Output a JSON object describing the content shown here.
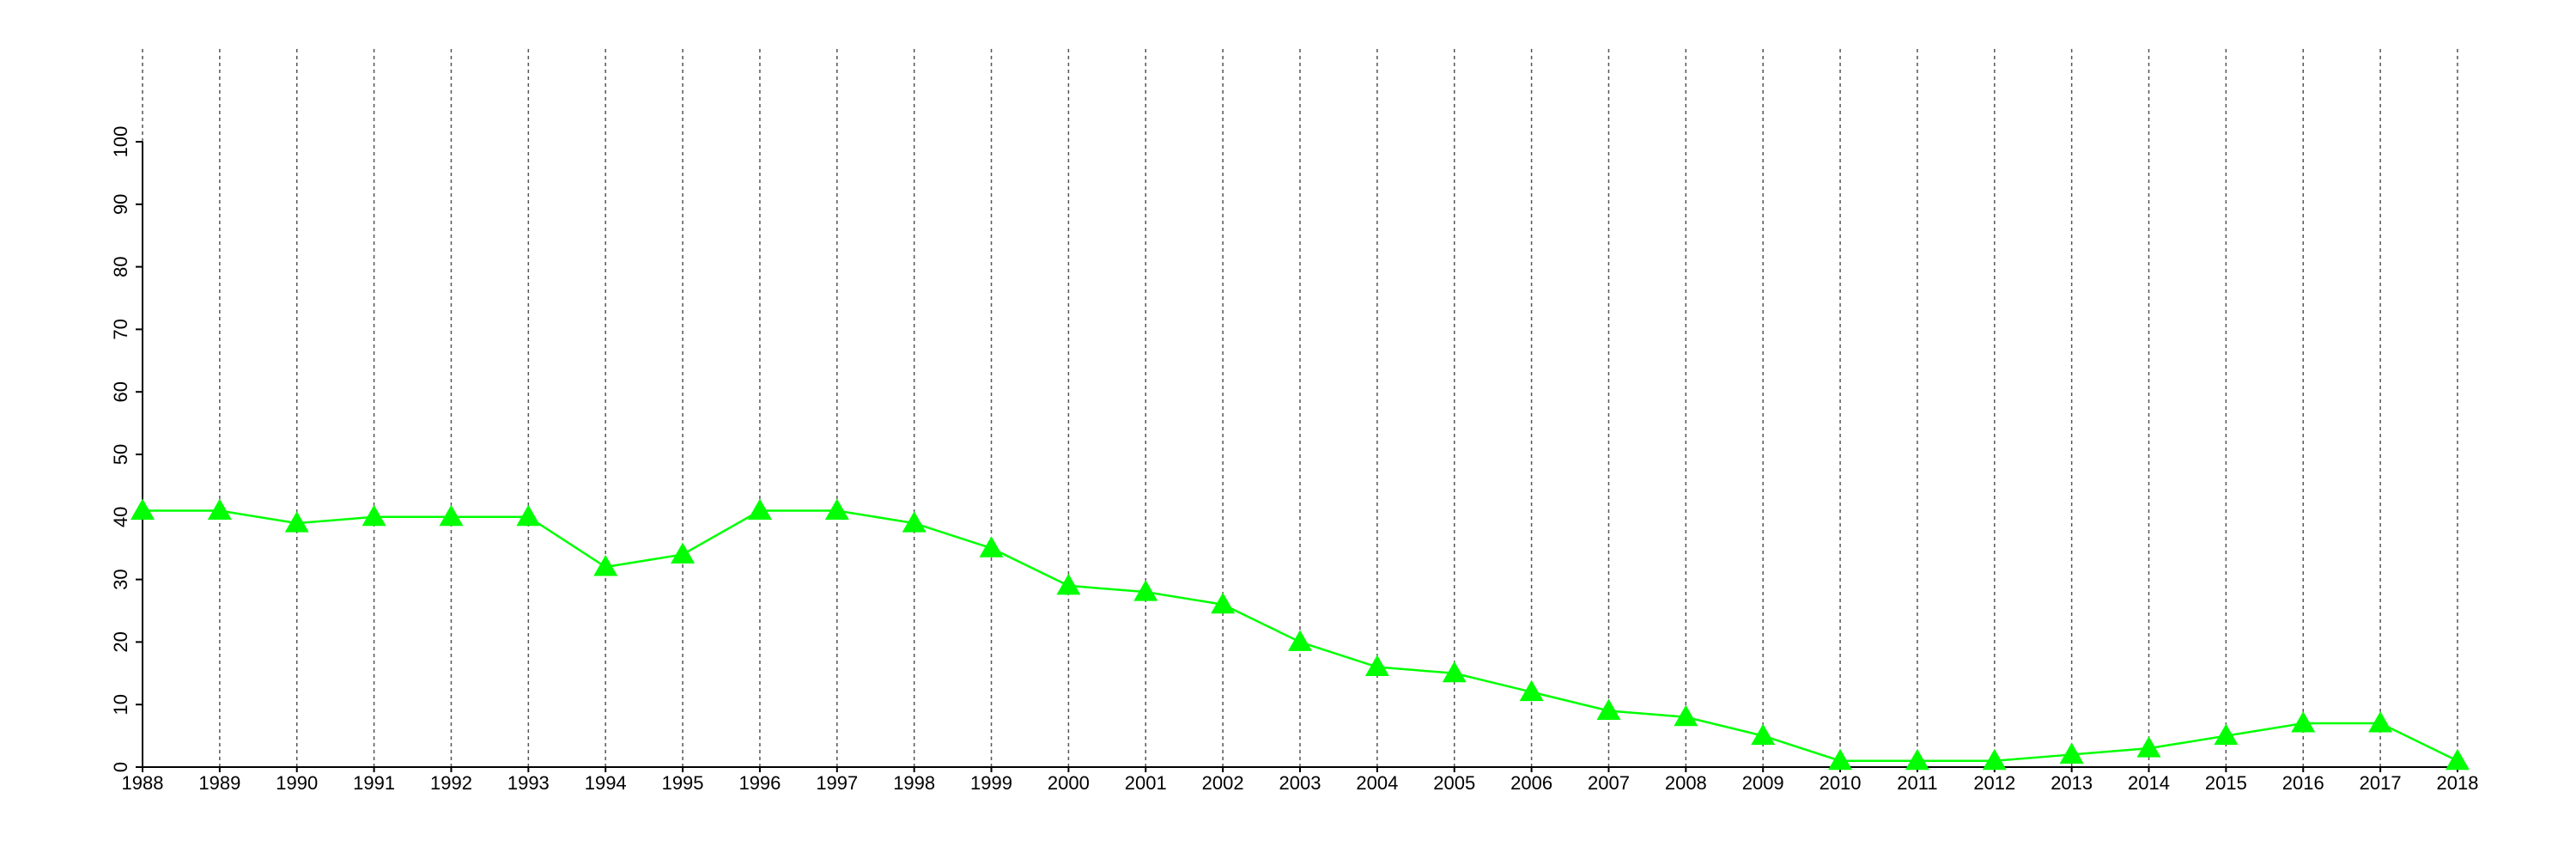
{
  "chart_data": {
    "type": "line",
    "x": [
      1988,
      1989,
      1990,
      1991,
      1992,
      1993,
      1994,
      1995,
      1996,
      1997,
      1998,
      1999,
      2000,
      2001,
      2002,
      2003,
      2004,
      2005,
      2006,
      2007,
      2008,
      2009,
      2010,
      2011,
      2012,
      2013,
      2014,
      2015,
      2016,
      2017,
      2018
    ],
    "values": [
      41,
      41,
      39,
      40,
      40,
      40,
      32,
      34,
      41,
      41,
      39,
      35,
      29,
      28,
      26,
      20,
      16,
      15,
      12,
      9,
      8,
      5,
      1,
      1,
      1,
      2,
      3,
      5,
      7,
      7,
      1
    ],
    "color": "#00ff00",
    "marker": "triangle",
    "xlim": [
      1988,
      2018
    ],
    "xticks": [
      1988,
      1989,
      1990,
      1991,
      1992,
      1993,
      1994,
      1995,
      1996,
      1997,
      1998,
      1999,
      2000,
      2001,
      2002,
      2003,
      2004,
      2005,
      2006,
      2007,
      2008,
      2009,
      2010,
      2011,
      2012,
      2013,
      2014,
      2015,
      2016,
      2017,
      2018
    ],
    "ylim": [
      0,
      100
    ],
    "yticks": [
      0,
      10,
      20,
      30,
      40,
      50,
      60,
      70,
      80,
      90,
      100
    ],
    "xgrid": true
  }
}
